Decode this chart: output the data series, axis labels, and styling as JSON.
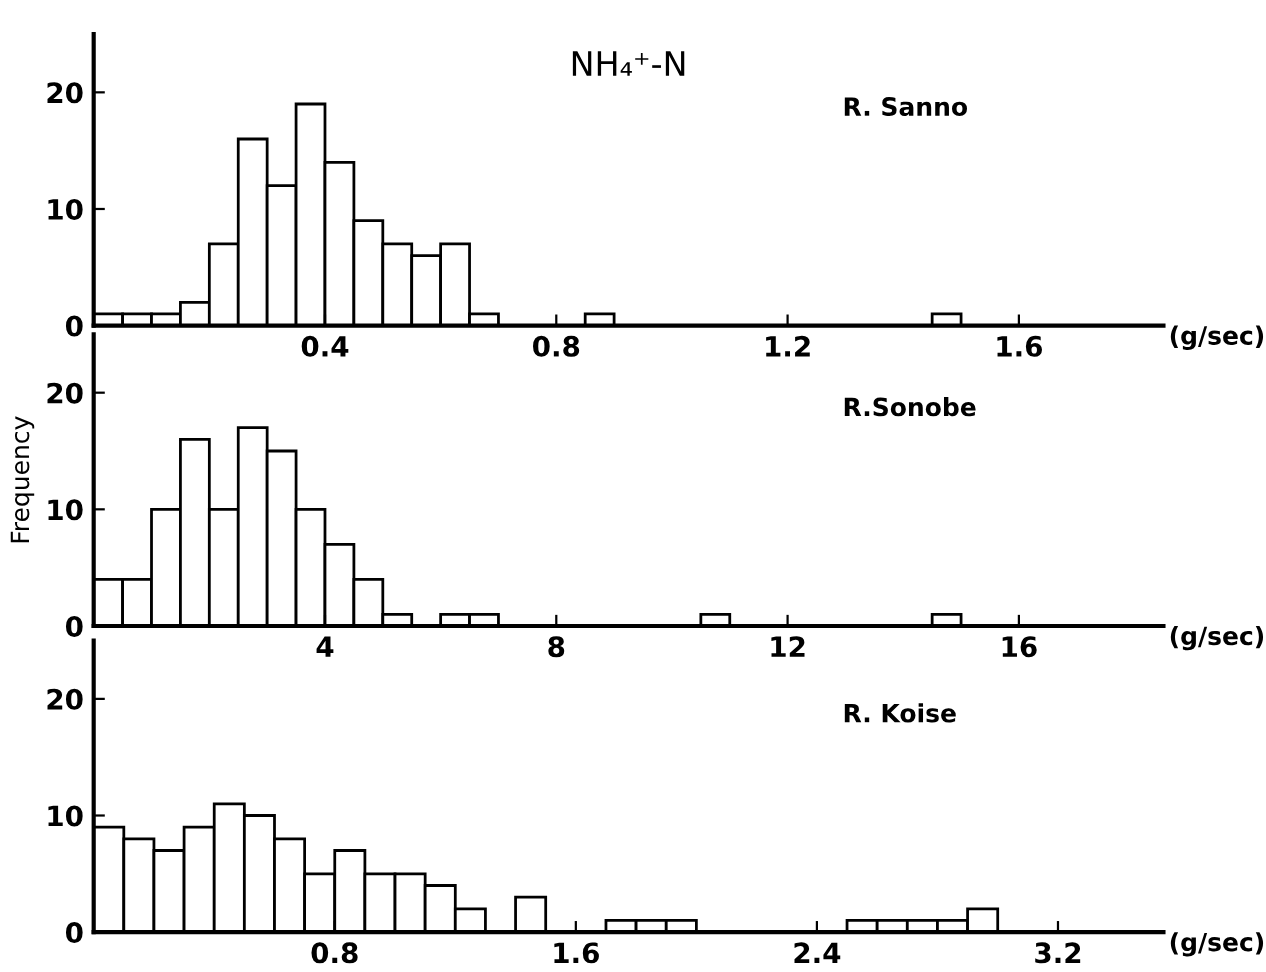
{
  "chart_data": [
    {
      "type": "histogram",
      "title": "NH₄⁺-N",
      "xlabel": "(g/sec)",
      "annotations": [
        "R. Sanno"
      ],
      "color": "#ffffff",
      "bins": [
        0,
        0.05,
        0.1,
        0.15,
        0.2,
        0.25,
        0.3,
        0.35,
        0.4,
        0.45,
        0.5,
        0.55,
        0.6,
        0.65,
        0.7,
        0.75,
        0.8,
        0.85,
        0.9,
        0.95,
        1.0,
        1.05,
        1.1,
        1.15,
        1.2,
        1.25,
        1.3,
        1.35,
        1.4,
        1.45,
        1.5
      ],
      "values": [
        1,
        1,
        1,
        2,
        7,
        16,
        12,
        19,
        14,
        9,
        7,
        6,
        7,
        1,
        0,
        0,
        0,
        1,
        0,
        0,
        0,
        0,
        0,
        0,
        0,
        0,
        0,
        0,
        0,
        1
      ],
      "xlim": [
        0,
        1.85
      ],
      "xticks": [
        0.4,
        0.8,
        1.2,
        1.6
      ],
      "ylim": [
        0,
        25
      ],
      "yticks": [
        0,
        10,
        20
      ]
    },
    {
      "type": "histogram",
      "xlabel": "(g/sec)",
      "ylabel": "Frequency",
      "annotations": [
        "R.Sonobe"
      ],
      "color": "#ffffff",
      "bins": [
        0,
        0.5,
        1,
        1.5,
        2,
        2.5,
        3,
        3.5,
        4,
        4.5,
        5,
        5.5,
        6,
        6.5,
        7,
        7.5,
        8,
        8.5,
        9,
        9.5,
        10,
        10.5,
        11,
        11.5,
        12,
        12.5,
        13,
        13.5,
        14,
        14.5,
        15
      ],
      "values": [
        4,
        4,
        10,
        16,
        10,
        17,
        15,
        10,
        7,
        4,
        1,
        0,
        1,
        1,
        0,
        0,
        0,
        0,
        0,
        0,
        0,
        1,
        0,
        0,
        0,
        0,
        0,
        0,
        0,
        1
      ],
      "xlim": [
        0,
        18.5
      ],
      "xticks": [
        4,
        8,
        12,
        16
      ],
      "ylim": [
        0,
        25
      ],
      "yticks": [
        0,
        10,
        20
      ]
    },
    {
      "type": "histogram",
      "xlabel": "(g/sec)",
      "annotations": [
        "R. Koise"
      ],
      "color": "#ffffff",
      "bins": [
        0,
        0.1,
        0.2,
        0.3,
        0.4,
        0.5,
        0.6,
        0.7,
        0.8,
        0.9,
        1.0,
        1.1,
        1.2,
        1.3,
        1.4,
        1.5,
        1.6,
        1.7,
        1.8,
        1.9,
        2.0,
        2.1,
        2.2,
        2.3,
        2.4,
        2.5,
        2.6,
        2.7,
        2.8,
        2.9,
        3.0
      ],
      "values": [
        9,
        8,
        7,
        9,
        11,
        10,
        8,
        5,
        7,
        5,
        5,
        4,
        2,
        0,
        3,
        0,
        0,
        1,
        1,
        1,
        0,
        0,
        0,
        0,
        0,
        1,
        1,
        1,
        1,
        2
      ],
      "xlim": [
        0,
        3.55
      ],
      "xticks": [
        0.8,
        1.6,
        2.4,
        3.2
      ],
      "ylim": [
        0,
        25
      ],
      "yticks": [
        0,
        10,
        20
      ]
    }
  ]
}
